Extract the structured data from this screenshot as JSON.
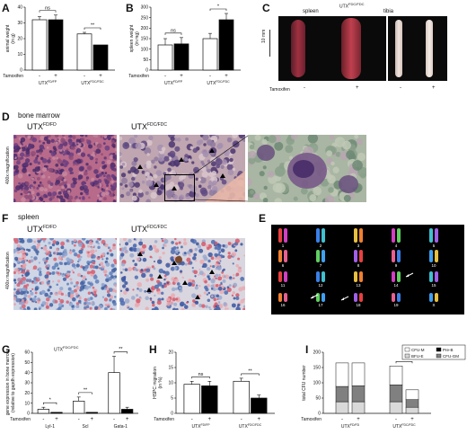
{
  "panels": {
    "A": {
      "letter": "A",
      "ylabel": "animal weight\n(in g)",
      "sig": [
        "ns",
        "**"
      ],
      "tamoxifen_label": "Tamoxifen",
      "signs": [
        "-",
        "+",
        "-",
        "+"
      ],
      "groups": [
        "UTX",
        "UTX"
      ],
      "sups": [
        "FD/FP",
        "FDC/FDC"
      ]
    },
    "B": {
      "letter": "B",
      "ylabel": "spleen weight\n(in mg)",
      "sig": [
        "ns",
        "*"
      ],
      "tamoxifen_label": "Tamoxifen",
      "signs": [
        "-",
        "+",
        "-",
        "+"
      ],
      "groups": [
        "UTX",
        "UTX"
      ],
      "sups": [
        "FD/FP",
        "FDC/FDC"
      ]
    },
    "C": {
      "letter": "C",
      "header": "UTX",
      "header_sup": "FDC/FDC",
      "spleen": "spleen",
      "tibia": "tibia",
      "scale": "10 mm",
      "tamoxifen_label": "Tamoxifen",
      "signs": [
        "-",
        "+",
        "-",
        "+"
      ]
    },
    "D": {
      "letter": "D",
      "title": "bone marrow",
      "left_label": "UTX",
      "left_sup": "FD/FD",
      "right_label": "UTX",
      "right_sup": "FDC/FDC",
      "side": "400x magnification"
    },
    "E": {
      "letter": "E",
      "chromosomes": [
        "1",
        "2",
        "3",
        "4",
        "5",
        "6",
        "7",
        "8",
        "9",
        "10",
        "11",
        "12",
        "13",
        "14",
        "15",
        "16",
        "17",
        "18",
        "19",
        "X"
      ]
    },
    "F": {
      "letter": "F",
      "title": "spleen",
      "left_label": "UTX",
      "left_sup": "FD/FD",
      "right_label": "UTX",
      "right_sup": "FDC/FDC",
      "side": "400x magnification"
    },
    "G": {
      "letter": "G",
      "header": "UTX",
      "header_sup": "FDC/FDC",
      "ylabel": "gene expression in bone marrow\n(relative to gapdh expression)",
      "sig": [
        "*",
        "**",
        "**"
      ],
      "tamoxifen_label": "Tamoxifen",
      "signs": [
        "-",
        "+",
        "-",
        "+",
        "-",
        "+"
      ],
      "groups": [
        "Lyl-1",
        "Scl",
        "Gata-1"
      ]
    },
    "H": {
      "letter": "H",
      "ylabel": "HSPC migration\n(in %)",
      "sig": [
        "ns",
        "**"
      ],
      "tamoxifen_label": "Tamoxifen",
      "signs": [
        "-",
        "+",
        "-",
        "+"
      ],
      "groups": [
        "UTX",
        "UTX"
      ],
      "sups": [
        "FD/FP",
        "FDC/FDC"
      ]
    },
    "I": {
      "letter": "I",
      "ylabel": "total CFU number",
      "sig": [
        "*"
      ],
      "tamoxifen_label": "Tamoxifen",
      "signs": [
        "-",
        "+",
        "-",
        "+"
      ],
      "groups": [
        "UTX",
        "UTX"
      ],
      "sups": [
        "FD/FD",
        "FDC/FDC"
      ],
      "legend": [
        "CFU-M",
        "Pre-B",
        "BFU-E",
        "CFU-GM"
      ]
    }
  },
  "chart_data": [
    {
      "id": "A",
      "type": "bar",
      "ylabel": "animal weight (in g)",
      "ylim": [
        0,
        40
      ],
      "yticks": [
        0,
        10,
        20,
        30,
        40
      ],
      "bars": [
        {
          "group": "UTX FD/FP",
          "tamoxifen": "-",
          "value": 32,
          "err": 2,
          "fill": "white"
        },
        {
          "group": "UTX FD/FP",
          "tamoxifen": "+",
          "value": 32,
          "err": 3,
          "fill": "black"
        },
        {
          "group": "UTX FDC/FDC",
          "tamoxifen": "-",
          "value": 23,
          "err": 1,
          "fill": "white"
        },
        {
          "group": "UTX FDC/FDC",
          "tamoxifen": "+",
          "value": 16,
          "err": 0,
          "fill": "black"
        }
      ]
    },
    {
      "id": "B",
      "type": "bar",
      "ylabel": "spleen weight (in mg)",
      "ylim": [
        0,
        300
      ],
      "yticks": [
        0,
        50,
        100,
        150,
        200,
        250,
        300
      ],
      "bars": [
        {
          "group": "UTX FD/FP",
          "tamoxifen": "-",
          "value": 120,
          "err": 30,
          "fill": "white"
        },
        {
          "group": "UTX FD/FP",
          "tamoxifen": "+",
          "value": 125,
          "err": 30,
          "fill": "black"
        },
        {
          "group": "UTX FDC/FDC",
          "tamoxifen": "-",
          "value": 150,
          "err": 25,
          "fill": "white"
        },
        {
          "group": "UTX FDC/FDC",
          "tamoxifen": "+",
          "value": 240,
          "err": 30,
          "fill": "black"
        }
      ]
    },
    {
      "id": "G",
      "type": "bar",
      "ylabel": "gene expression in bone marrow (relative to gapdh expression)",
      "ylim": [
        0,
        60
      ],
      "yticks": [
        0,
        10,
        20,
        30,
        40,
        50,
        60
      ],
      "bars": [
        {
          "group": "Lyl-1",
          "tamoxifen": "-",
          "value": 4,
          "err": 2,
          "fill": "white"
        },
        {
          "group": "Lyl-1",
          "tamoxifen": "+",
          "value": 1,
          "err": 0,
          "fill": "black"
        },
        {
          "group": "Scl",
          "tamoxifen": "-",
          "value": 12,
          "err": 4,
          "fill": "white"
        },
        {
          "group": "Scl",
          "tamoxifen": "+",
          "value": 1,
          "err": 0,
          "fill": "black"
        },
        {
          "group": "Gata-1",
          "tamoxifen": "-",
          "value": 40,
          "err": 16,
          "fill": "white"
        },
        {
          "group": "Gata-1",
          "tamoxifen": "+",
          "value": 4,
          "err": 2,
          "fill": "black"
        }
      ]
    },
    {
      "id": "H",
      "type": "bar",
      "ylabel": "HSPC migration (in %)",
      "ylim": [
        0,
        20
      ],
      "yticks": [
        0,
        5,
        10,
        15,
        20
      ],
      "bars": [
        {
          "group": "UTX FD/FP",
          "tamoxifen": "-",
          "value": 9.5,
          "err": 1,
          "fill": "white"
        },
        {
          "group": "UTX FD/FP",
          "tamoxifen": "+",
          "value": 9,
          "err": 1.5,
          "fill": "black"
        },
        {
          "group": "UTX FDC/FDC",
          "tamoxifen": "-",
          "value": 10.5,
          "err": 1,
          "fill": "white"
        },
        {
          "group": "UTX FDC/FDC",
          "tamoxifen": "+",
          "value": 5,
          "err": 1,
          "fill": "black"
        }
      ]
    },
    {
      "id": "I",
      "type": "bar",
      "stacked": true,
      "ylabel": "total CFU number",
      "ylim": [
        0,
        200
      ],
      "yticks": [
        0,
        50,
        100,
        150,
        200
      ],
      "categories": [
        "UTX FD/FD -",
        "UTX FD/FD +",
        "UTX FDC/FDC -",
        "UTX FDC/FDC +"
      ],
      "series": [
        {
          "name": "BFU-E",
          "values": [
            38,
            38,
            38,
            20
          ],
          "color": "#d9d9d9"
        },
        {
          "name": "CFU-GM",
          "values": [
            50,
            52,
            55,
            25
          ],
          "color": "#808080"
        },
        {
          "name": "Pre-B",
          "values": [
            0,
            0,
            0,
            0
          ],
          "color": "#000000"
        },
        {
          "name": "CFU-M",
          "values": [
            77,
            75,
            62,
            32
          ],
          "color": "#ffffff"
        }
      ]
    }
  ]
}
